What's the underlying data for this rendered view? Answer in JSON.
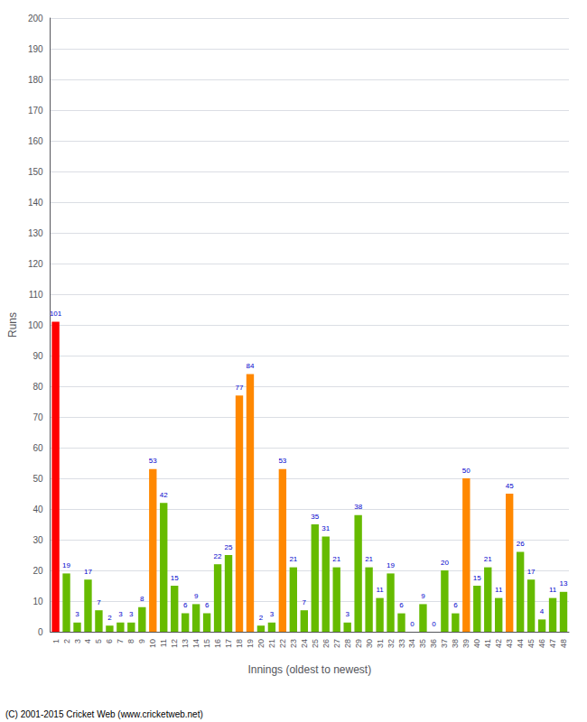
{
  "chart_data": {
    "type": "bar",
    "xlabel": "Innings (oldest to newest)",
    "ylabel": "Runs",
    "annotations": [
      "(C) 2001-2015 Cricket Web (www.cricketweb.net)"
    ],
    "categories": [
      "1",
      "2",
      "3",
      "4",
      "5",
      "6",
      "7",
      "8",
      "9",
      "10",
      "11",
      "12",
      "13",
      "14",
      "15",
      "16",
      "17",
      "18",
      "19",
      "20",
      "21",
      "22",
      "23",
      "24",
      "25",
      "26",
      "27",
      "28",
      "29",
      "30",
      "31",
      "32",
      "33",
      "34",
      "35",
      "36",
      "37",
      "38",
      "39",
      "40",
      "41",
      "42",
      "43",
      "44",
      "45",
      "46",
      "47",
      "48"
    ],
    "values": [
      101,
      19,
      3,
      17,
      7,
      2,
      3,
      3,
      8,
      53,
      42,
      15,
      6,
      9,
      6,
      22,
      25,
      77,
      84,
      2,
      3,
      53,
      21,
      7,
      35,
      31,
      21,
      3,
      38,
      21,
      11,
      19,
      6,
      0,
      9,
      0,
      20,
      6,
      50,
      15,
      21,
      11,
      45,
      26,
      17,
      4,
      11,
      13
    ],
    "colors": [
      "#ff0000",
      "#66bb00",
      "#66bb00",
      "#66bb00",
      "#66bb00",
      "#66bb00",
      "#66bb00",
      "#66bb00",
      "#66bb00",
      "#ff8800",
      "#66bb00",
      "#66bb00",
      "#66bb00",
      "#66bb00",
      "#66bb00",
      "#66bb00",
      "#66bb00",
      "#ff8800",
      "#ff8800",
      "#66bb00",
      "#66bb00",
      "#ff8800",
      "#66bb00",
      "#66bb00",
      "#66bb00",
      "#66bb00",
      "#66bb00",
      "#66bb00",
      "#66bb00",
      "#66bb00",
      "#66bb00",
      "#66bb00",
      "#66bb00",
      "#66bb00",
      "#66bb00",
      "#66bb00",
      "#66bb00",
      "#66bb00",
      "#ff8800",
      "#66bb00",
      "#66bb00",
      "#66bb00",
      "#ff8800",
      "#66bb00",
      "#66bb00",
      "#66bb00",
      "#66bb00",
      "#66bb00"
    ],
    "ylim": [
      0,
      200
    ],
    "yticks": [
      0,
      10,
      20,
      30,
      40,
      50,
      60,
      70,
      80,
      90,
      100,
      110,
      120,
      130,
      140,
      150,
      160,
      170,
      180,
      190,
      200
    ],
    "grid": true,
    "data_labels": true
  }
}
